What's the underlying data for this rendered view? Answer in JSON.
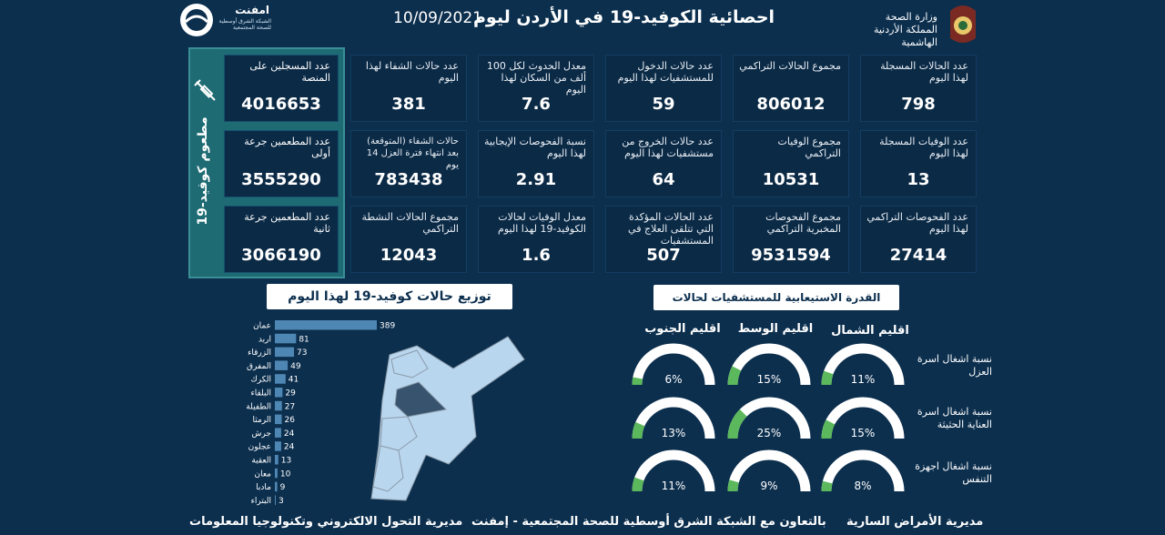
{
  "header": {
    "title": "احصائية الكوفيد-19 في الأردن ليوم",
    "date": "10/09/2021",
    "ministry_line1": "وزارة الصحة",
    "ministry_line2": "المملكة الأردنية الهاشمية",
    "logo_name": "امفنت",
    "logo_sub": "الشبكة الشرق أوسطية للصحة المجتمعية"
  },
  "cards": [
    {
      "label": "عدد الحالات المسجلة لهذا اليوم",
      "value": "798"
    },
    {
      "label": "مجموع الحالات التراكمي",
      "value": "806012"
    },
    {
      "label": "عدد حالات الدخول للمستشفيات لهذا اليوم",
      "value": "59"
    },
    {
      "label": "معدل الحدوث لكل 100 ألف من السكان لهذا اليوم",
      "value": "7.6"
    },
    {
      "label": "عدد حالات الشفاء لهذا اليوم",
      "value": "381"
    },
    {
      "label": "عدد الوفيات المسجلة لهذا اليوم",
      "value": "13"
    },
    {
      "label": "مجموع الوفيات التراكمي",
      "value": "10531"
    },
    {
      "label": "عدد حالات الخروج من مستشفيات لهذا اليوم",
      "value": "64"
    },
    {
      "label": "نسبة الفحوصات الإيجابية لهذا اليوم",
      "value": "2.91"
    },
    {
      "label": "حالات الشفاء (المتوقعة) بعد انتهاء فترة العزل 14 يوم",
      "value": "783438"
    },
    {
      "label": "عدد الفحوصات التراكمي لهذا اليوم",
      "value": "27414"
    },
    {
      "label": "مجموع الفحوصات المخبرية التراكمي",
      "value": "9531594"
    },
    {
      "label": "عدد الحالات المؤكدة التي تتلقى العلاج في المستشفيات",
      "value": "507"
    },
    {
      "label": "معدل الوفيات لحالات الكوفيد-19 لهذا اليوم",
      "value": "1.6"
    },
    {
      "label": "مجموع الحالات النشطة التراكمي",
      "value": "12043"
    }
  ],
  "vaccination": {
    "side_title": "مطعوم كوفيد-19",
    "items": [
      {
        "label": "عدد المسجلين على المنصة",
        "value": "4016653"
      },
      {
        "label": "عدد المطعمين جرعة أولى",
        "value": "3555290"
      },
      {
        "label": "عدد المطعمين جرعة ثانية",
        "value": "3066190"
      }
    ]
  },
  "distribution_title": "توزيع حالات كوفيد-19 لهذا اليوم",
  "chart_data": {
    "type": "bar",
    "orientation": "horizontal",
    "categories": [
      "عمان",
      "اربد",
      "الزرقاء",
      "المفرق",
      "الكرك",
      "البلقاء",
      "الطفيلة",
      "الرمثا",
      "جرش",
      "عجلون",
      "العقبة",
      "معان",
      "مادبا",
      "البتراء"
    ],
    "values": [
      389,
      81,
      73,
      49,
      41,
      29,
      27,
      26,
      24,
      24,
      13,
      10,
      9,
      3
    ],
    "xlim": [
      0,
      389
    ],
    "bar_color": "#4f87b4"
  },
  "capacity": {
    "title": "القدرة الاستيعابية للمستشفيات لحالات كوفيد-19",
    "regions": [
      "اقليم الشمال",
      "اقليم الوسط",
      "اقليم الجنوب"
    ],
    "rows": [
      {
        "label": "نسبة اشغال اسرة العزل",
        "values": [
          "11%",
          "15%",
          "6%"
        ],
        "fractions": [
          0.11,
          0.15,
          0.06
        ]
      },
      {
        "label": "نسبة اشغال اسرة العناية الحثيثة",
        "values": [
          "15%",
          "25%",
          "13%"
        ],
        "fractions": [
          0.15,
          0.25,
          0.13
        ]
      },
      {
        "label": "نسبة اشغال اجهزة التنفس",
        "values": [
          "8%",
          "9%",
          "11%"
        ],
        "fractions": [
          0.08,
          0.09,
          0.11
        ]
      }
    ],
    "fill_color": "#5cb85c",
    "track_color": "#ffffff"
  },
  "footer": {
    "left": "مديرية التحول الالكتروني وتكنولوجيا المعلومات",
    "center": "بالتعاون مع الشبكة الشرق أوسطية للصحة المجتمعية - إمفنت",
    "right": "مديرية الأمراض السارية"
  }
}
